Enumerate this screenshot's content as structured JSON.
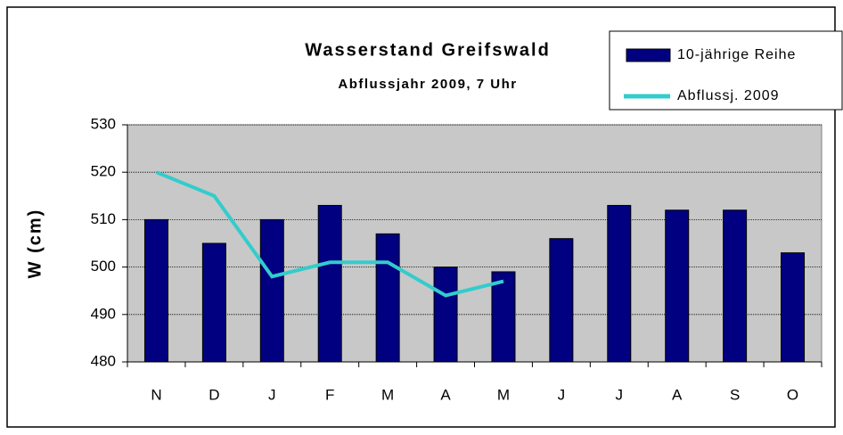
{
  "chart_data": {
    "type": "bar-line",
    "title": "Wasserstand Greifswald",
    "subtitle": "Abflussjahr 2009, 7 Uhr",
    "y_label": "W (cm)",
    "categories": [
      "N",
      "D",
      "J",
      "F",
      "M",
      "A",
      "M",
      "J",
      "J",
      "A",
      "S",
      "O"
    ],
    "series": [
      {
        "name": "10-jährige Reihe",
        "type": "bar",
        "color": "#000080",
        "values": [
          510,
          505,
          510,
          513,
          507,
          500,
          499,
          506,
          513,
          512,
          512,
          503
        ]
      },
      {
        "name": "Abflussj. 2009",
        "type": "line",
        "color": "#33cccc",
        "values": [
          520,
          515,
          498,
          501,
          501,
          494,
          497,
          null,
          null,
          null,
          null,
          null
        ]
      }
    ],
    "ylim": [
      480,
      530
    ],
    "yticks": [
      480,
      490,
      500,
      510,
      520,
      530
    ],
    "grid": true,
    "legend": "upper right"
  }
}
